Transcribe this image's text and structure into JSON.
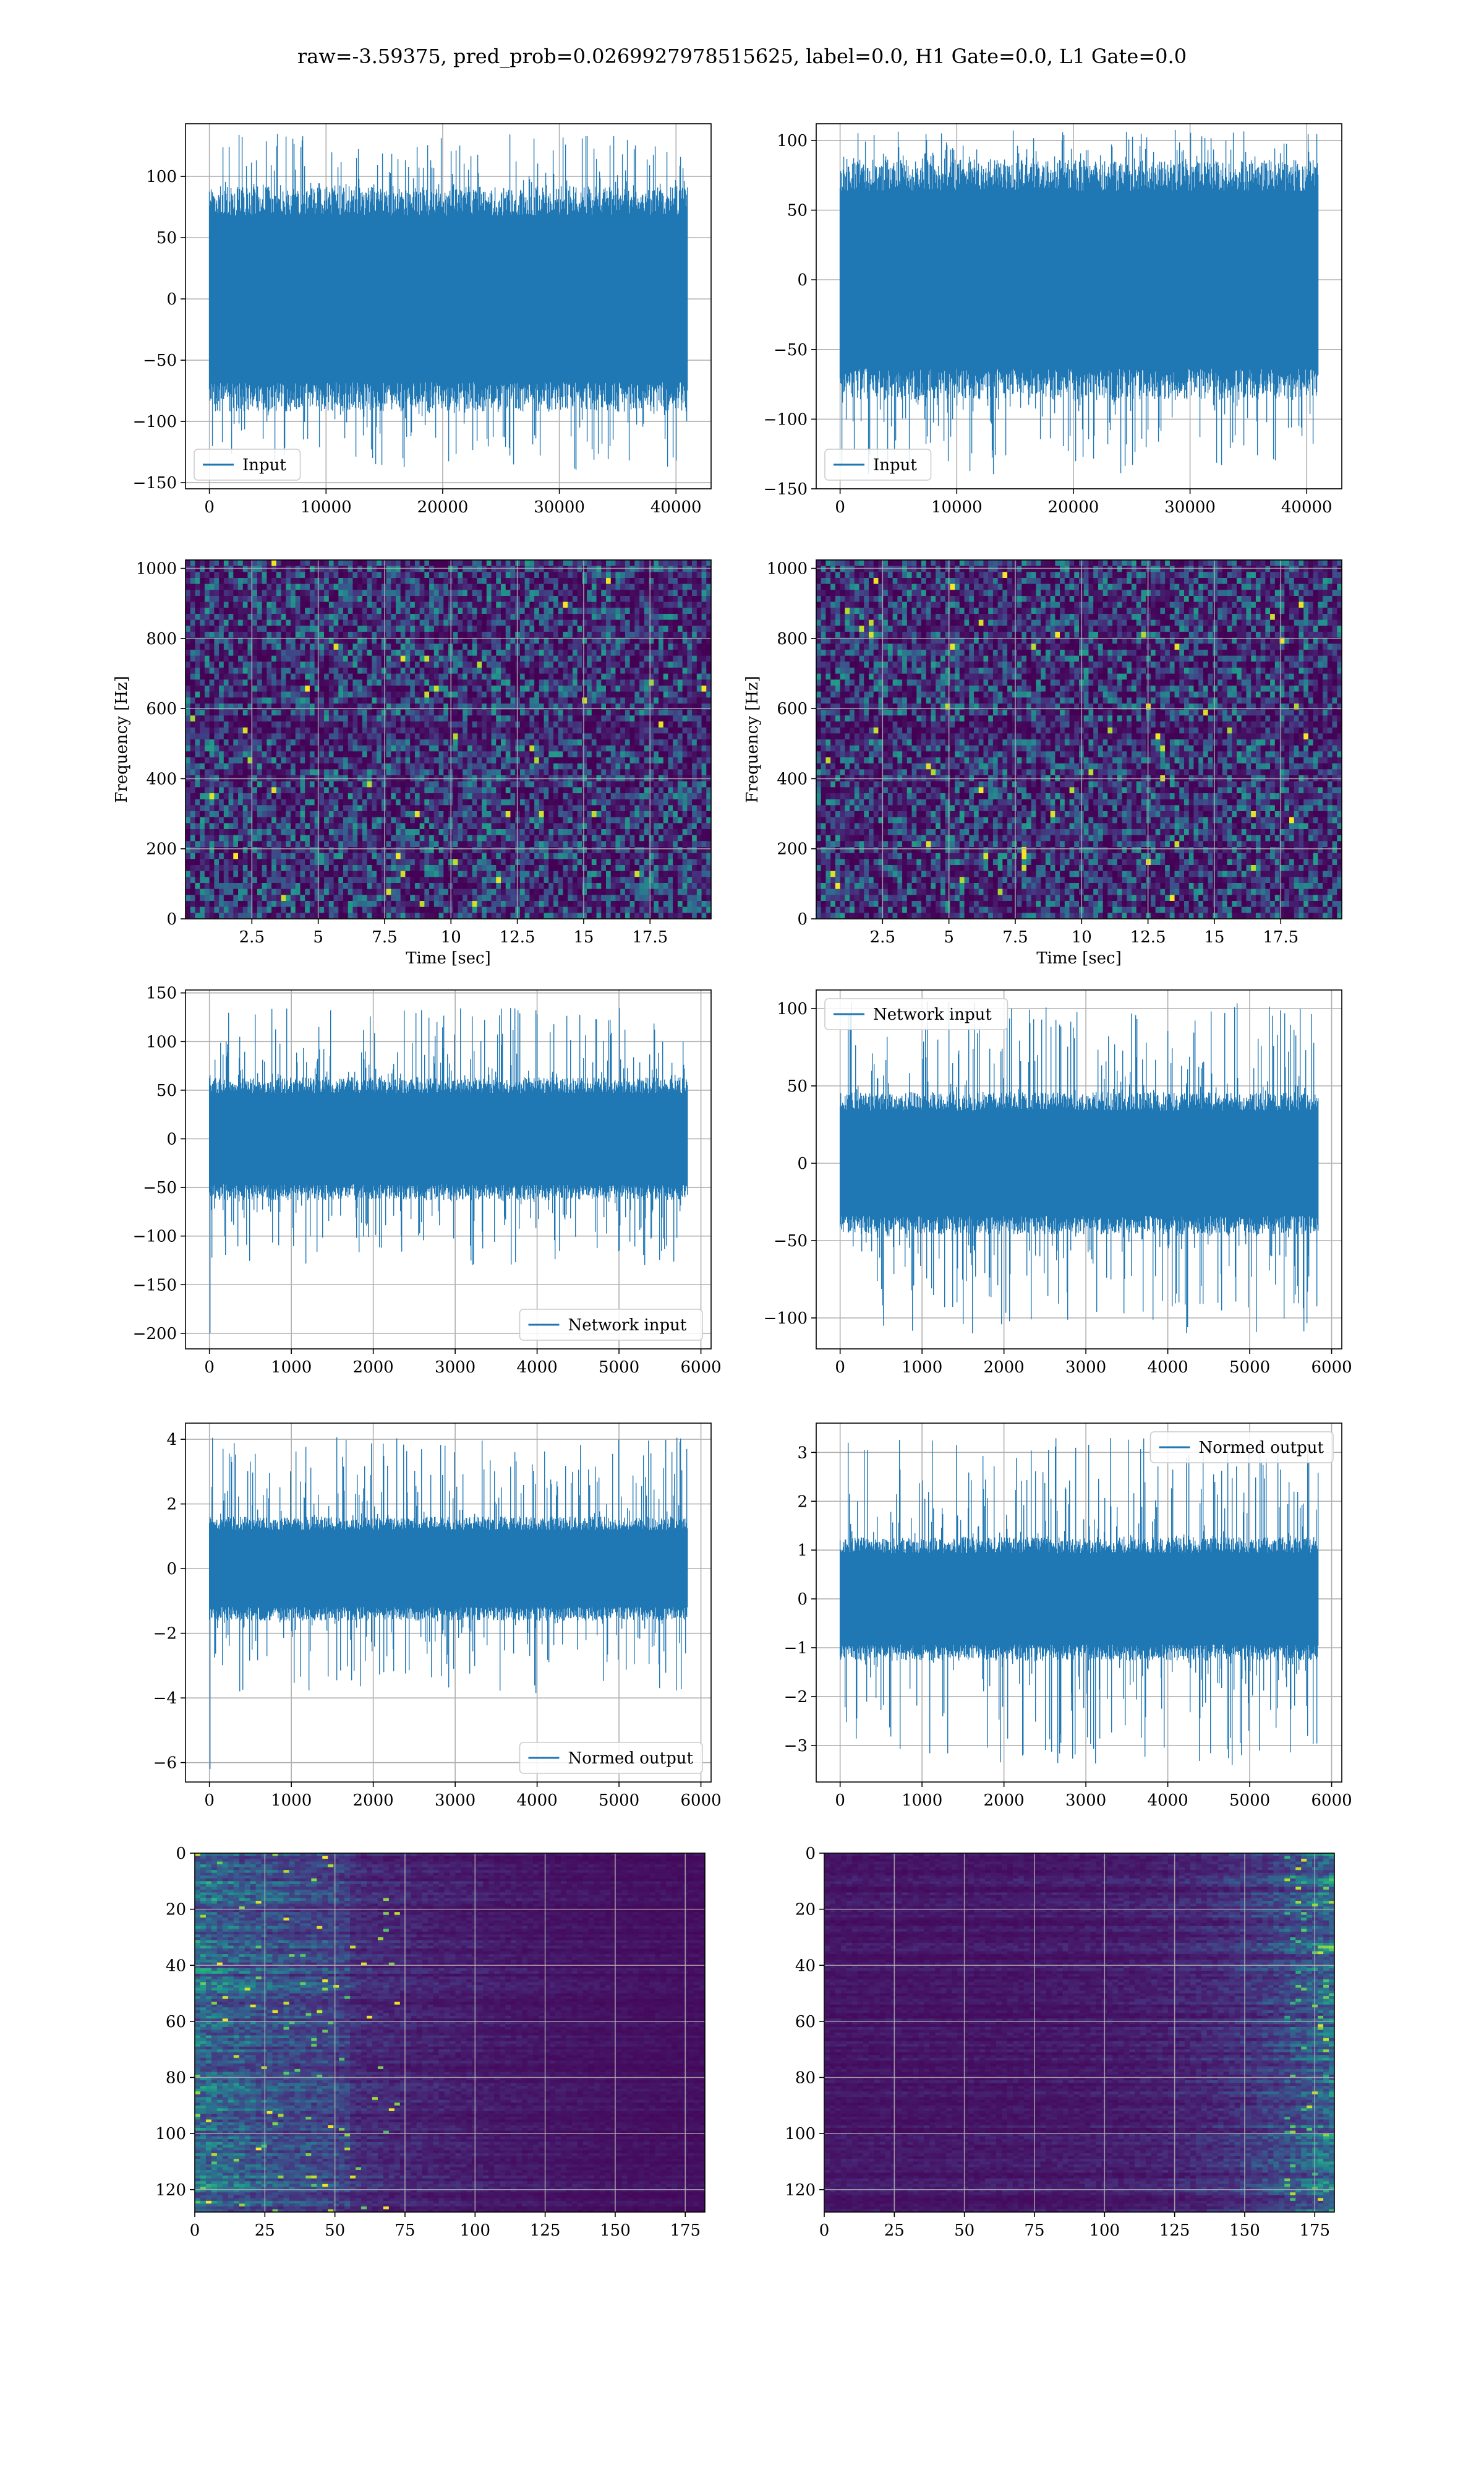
{
  "figure": {
    "suptitle": "raw=-3.59375, pred_prob=0.0269927978515625, label=0.0, H1 Gate=0.0, L1 Gate=0.0"
  },
  "colors": {
    "line": "#1f77b4",
    "grid": "#b0b0b0",
    "viridis": [
      "#440154",
      "#472d7b",
      "#3b528b",
      "#2c728e",
      "#21918c",
      "#28ae80",
      "#5ec962",
      "#addc30",
      "#fde725"
    ]
  },
  "chart_data": [
    {
      "id": "h1-input",
      "type": "line",
      "xlim": [
        -2048,
        43008
      ],
      "ylim": [
        -155,
        143
      ],
      "xticks": [
        0,
        10000,
        20000,
        30000,
        40000
      ],
      "yticks": [
        -150,
        -100,
        -50,
        0,
        50,
        100
      ],
      "series": [
        {
          "name": "Input",
          "x_range": [
            0,
            40959
          ],
          "envelope": [
            -140,
            135
          ],
          "bulk": [
            -80,
            80
          ]
        }
      ],
      "legend": "lower left",
      "grid": true
    },
    {
      "id": "l1-input",
      "type": "line",
      "xlim": [
        -2048,
        43008
      ],
      "ylim": [
        -150,
        112
      ],
      "xticks": [
        0,
        10000,
        20000,
        30000,
        40000
      ],
      "yticks": [
        -150,
        -100,
        -50,
        0,
        50,
        100
      ],
      "series": [
        {
          "name": "Input",
          "x_range": [
            0,
            40959
          ],
          "envelope": [
            -140,
            108
          ],
          "bulk": [
            -75,
            75
          ]
        }
      ],
      "legend": "lower left",
      "grid": true
    },
    {
      "id": "h1-spectrogram",
      "type": "heatmap",
      "xlim": [
        0,
        19.8
      ],
      "ylim": [
        0,
        1024
      ],
      "xticks": [
        2.5,
        5.0,
        7.5,
        10.0,
        12.5,
        15.0,
        17.5
      ],
      "yticks": [
        0,
        200,
        400,
        600,
        800,
        1000
      ],
      "xlabel": "Time [sec]",
      "ylabel": "Frequency [Hz]",
      "colormap": "viridis",
      "grid": true
    },
    {
      "id": "l1-spectrogram",
      "type": "heatmap",
      "xlim": [
        0,
        19.8
      ],
      "ylim": [
        0,
        1024
      ],
      "xticks": [
        2.5,
        5.0,
        7.5,
        10.0,
        12.5,
        15.0,
        17.5
      ],
      "yticks": [
        0,
        200,
        400,
        600,
        800,
        1000
      ],
      "xlabel": "Time [sec]",
      "ylabel": "Frequency [Hz]",
      "colormap": "viridis",
      "grid": true
    },
    {
      "id": "h1-network-input",
      "type": "line",
      "xlim": [
        -292,
        6124
      ],
      "ylim": [
        -216,
        153
      ],
      "xticks": [
        0,
        1000,
        2000,
        3000,
        4000,
        5000,
        6000
      ],
      "yticks": [
        -200,
        -150,
        -100,
        -50,
        0,
        50,
        100,
        150
      ],
      "series": [
        {
          "name": "Network input",
          "x_range": [
            0,
            5832
          ],
          "envelope": [
            -130,
            135
          ],
          "bulk": [
            -55,
            55
          ],
          "start_spike": -200
        }
      ],
      "legend": "lower right",
      "grid": true
    },
    {
      "id": "l1-network-input",
      "type": "line",
      "xlim": [
        -292,
        6124
      ],
      "ylim": [
        -120,
        112
      ],
      "xticks": [
        0,
        1000,
        2000,
        3000,
        4000,
        5000,
        6000
      ],
      "yticks": [
        -100,
        -50,
        0,
        50,
        100
      ],
      "series": [
        {
          "name": "Network input",
          "x_range": [
            0,
            5832
          ],
          "envelope": [
            -110,
            105
          ],
          "bulk": [
            -40,
            40
          ]
        }
      ],
      "legend": "upper left",
      "grid": true
    },
    {
      "id": "h1-normed-output",
      "type": "line",
      "xlim": [
        -292,
        6124
      ],
      "ylim": [
        -6.6,
        4.5
      ],
      "xticks": [
        0,
        1000,
        2000,
        3000,
        4000,
        5000,
        6000
      ],
      "yticks": [
        -6,
        -4,
        -2,
        0,
        2,
        4
      ],
      "series": [
        {
          "name": "Normed output",
          "x_range": [
            0,
            5832
          ],
          "envelope": [
            -3.9,
            4.1
          ],
          "bulk": [
            -1.4,
            1.4
          ],
          "start_spike": -6.2
        }
      ],
      "legend": "lower right",
      "grid": true
    },
    {
      "id": "l1-normed-output",
      "type": "line",
      "xlim": [
        -292,
        6124
      ],
      "ylim": [
        -3.75,
        3.6
      ],
      "xticks": [
        0,
        1000,
        2000,
        3000,
        4000,
        5000,
        6000
      ],
      "yticks": [
        -3,
        -2,
        -1,
        0,
        1,
        2,
        3
      ],
      "series": [
        {
          "name": "Normed output",
          "x_range": [
            0,
            5832
          ],
          "envelope": [
            -3.4,
            3.3
          ],
          "bulk": [
            -1.1,
            1.1
          ]
        }
      ],
      "legend": "upper right",
      "grid": true
    },
    {
      "id": "h1-feature-map",
      "type": "heatmap",
      "xlim": [
        0,
        182
      ],
      "ylim": [
        128,
        0
      ],
      "xticks": [
        0,
        25,
        50,
        75,
        100,
        125,
        150,
        175
      ],
      "yticks": [
        0,
        20,
        40,
        60,
        80,
        100,
        120
      ],
      "colormap": "viridis",
      "grid": true,
      "activity": "left"
    },
    {
      "id": "l1-feature-map",
      "type": "heatmap",
      "xlim": [
        0,
        182
      ],
      "ylim": [
        128,
        0
      ],
      "xticks": [
        0,
        25,
        50,
        75,
        100,
        125,
        150,
        175
      ],
      "yticks": [
        0,
        20,
        40,
        60,
        80,
        100,
        120
      ],
      "colormap": "viridis",
      "grid": true,
      "activity": "right"
    }
  ]
}
